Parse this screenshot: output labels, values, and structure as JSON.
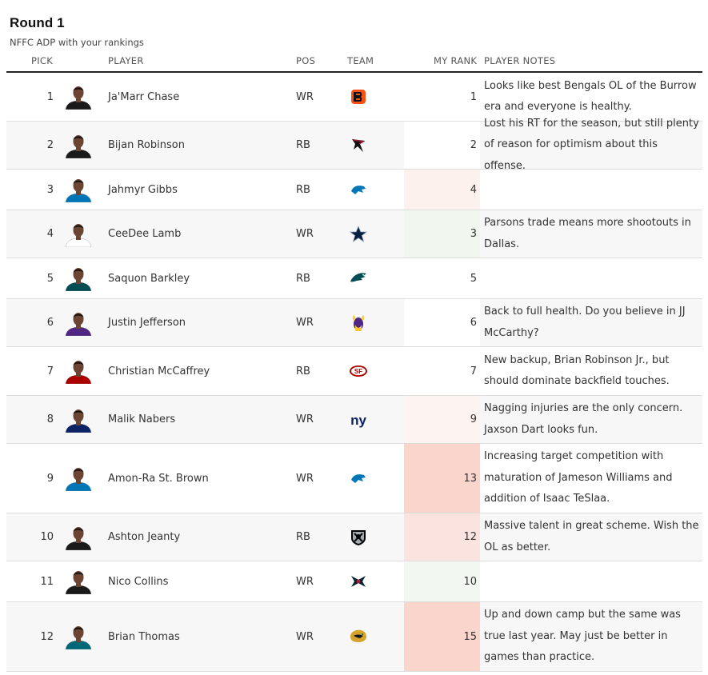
{
  "header": {
    "title": "Round 1",
    "subtitle": "NFFC ADP with your rankings",
    "columns": {
      "pick": "PICK",
      "player": "PLAYER",
      "pos": "POS",
      "team": "TEAM",
      "rank": "MY RANK",
      "notes": "PLAYER NOTES"
    }
  },
  "rows": [
    {
      "pick": "1",
      "player": "Ja'Marr Chase",
      "pos": "WR",
      "team_icon": "bengals-logo-icon",
      "team_color": "#fb4f14",
      "rank": "1",
      "rank_bg": "#ffffff",
      "notes": "Looks like best Bengals OL of the Burrow era and everyone is healthy.",
      "jersey": "#1a1a1a"
    },
    {
      "pick": "2",
      "player": "Bijan Robinson",
      "pos": "RB",
      "team_icon": "falcons-logo-icon",
      "team_color": "#a71930",
      "rank": "2",
      "rank_bg": "#ffffff",
      "notes": "Lost his RT for the season, but still plenty of reason for optimism about this offense.",
      "jersey": "#1a1a1a"
    },
    {
      "pick": "3",
      "player": "Jahmyr Gibbs",
      "pos": "RB",
      "team_icon": "lions-logo-icon",
      "team_color": "#0076b6",
      "rank": "4",
      "rank_bg": "#fdf1ee",
      "notes": "",
      "jersey": "#0076b6"
    },
    {
      "pick": "4",
      "player": "CeeDee Lamb",
      "pos": "WR",
      "team_icon": "cowboys-logo-icon",
      "team_color": "#041e42",
      "rank": "3",
      "rank_bg": "#f1f6ef",
      "notes": "Parsons trade means more shootouts in Dallas.",
      "jersey": "#ffffff"
    },
    {
      "pick": "5",
      "player": "Saquon Barkley",
      "pos": "RB",
      "team_icon": "eagles-logo-icon",
      "team_color": "#004c54",
      "rank": "5",
      "rank_bg": "#ffffff",
      "notes": "",
      "jersey": "#004c54"
    },
    {
      "pick": "6",
      "player": "Justin Jefferson",
      "pos": "WR",
      "team_icon": "vikings-logo-icon",
      "team_color": "#ffc62f",
      "rank": "6",
      "rank_bg": "#ffffff",
      "notes": "Back to full health. Do you believe in JJ McCarthy?",
      "jersey": "#4f2683"
    },
    {
      "pick": "7",
      "player": "Christian McCaffrey",
      "pos": "RB",
      "team_icon": "49ers-logo-icon",
      "team_color": "#aa0000",
      "rank": "7",
      "rank_bg": "#ffffff",
      "notes": "New backup, Brian Robinson Jr., but should dominate backfield touches.",
      "jersey": "#aa0000"
    },
    {
      "pick": "8",
      "player": "Malik Nabers",
      "pos": "WR",
      "team_icon": "giants-logo-icon",
      "team_color": "#0b2265",
      "rank": "9",
      "rank_bg": "#fdf4f2",
      "notes": "Nagging injuries are the only concern. Jaxson Dart looks fun.",
      "jersey": "#0b2265"
    },
    {
      "pick": "9",
      "player": "Amon-Ra St. Brown",
      "pos": "WR",
      "team_icon": "lions-logo-icon",
      "team_color": "#0076b6",
      "rank": "13",
      "rank_bg": "#f9d5cc",
      "notes": "Increasing target competition with maturation of Jameson Williams and addition of Isaac TeSlaa.",
      "jersey": "#0076b6"
    },
    {
      "pick": "10",
      "player": "Ashton Jeanty",
      "pos": "RB",
      "team_icon": "raiders-logo-icon",
      "team_color": "#000000",
      "rank": "12",
      "rank_bg": "#fbe4df",
      "notes": "Massive talent in great scheme. Wish the OL as better.",
      "jersey": "#1a1a1a"
    },
    {
      "pick": "11",
      "player": "Nico Collins",
      "pos": "WR",
      "team_icon": "texans-logo-icon",
      "team_color": "#03202f",
      "rank": "10",
      "rank_bg": "#f3f7f1",
      "notes": "",
      "jersey": "#1a1a1a"
    },
    {
      "pick": "12",
      "player": "Brian Thomas",
      "pos": "WR",
      "team_icon": "jaguars-logo-icon",
      "team_color": "#d7a22a",
      "rank": "15",
      "rank_bg": "#f9d5cc",
      "notes": "Up and down camp but the same was true last year. May just be better in games than practice.",
      "jersey": "#006778"
    }
  ]
}
